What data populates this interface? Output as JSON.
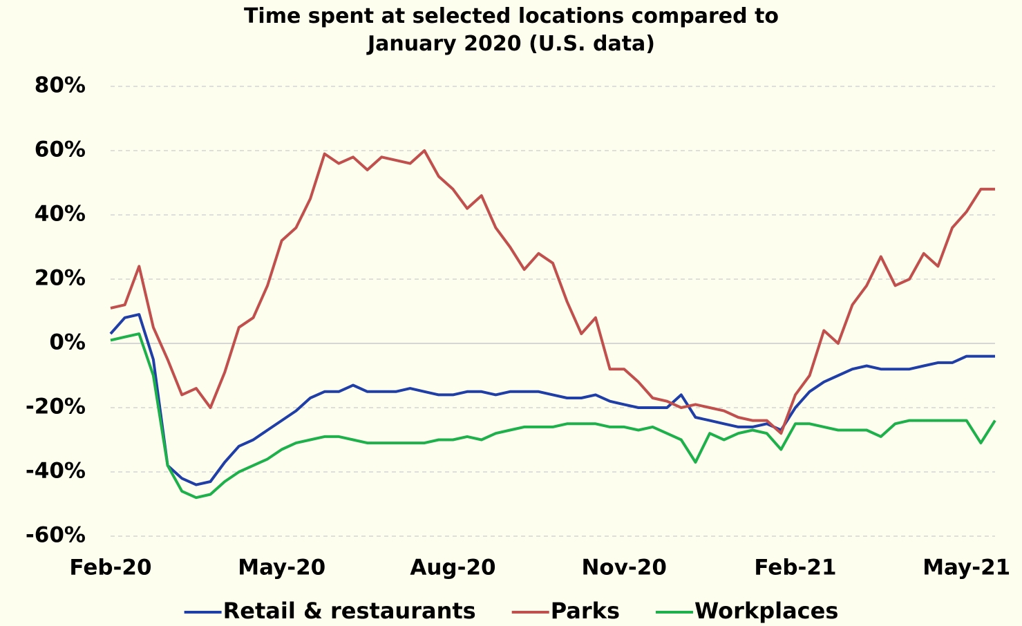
{
  "chart_data": {
    "type": "line",
    "title": "Time spent at selected locations compared to January 2020 (U.S. data)",
    "categories": [
      "Feb-20",
      null,
      null,
      null,
      null,
      null,
      null,
      null,
      null,
      null,
      null,
      null,
      "May-20",
      null,
      null,
      null,
      null,
      null,
      null,
      null,
      null,
      null,
      null,
      null,
      "Aug-20",
      null,
      null,
      null,
      null,
      null,
      null,
      null,
      null,
      null,
      null,
      null,
      "Nov-20",
      null,
      null,
      null,
      null,
      null,
      null,
      null,
      null,
      null,
      null,
      null,
      "Feb-21",
      null,
      null,
      null,
      null,
      null,
      null,
      null,
      null,
      null,
      null,
      null,
      "May-21",
      null,
      null
    ],
    "series": [
      {
        "name": "Retail & restaurants",
        "color": "#1f3ea6",
        "values": [
          3,
          8,
          9,
          -5,
          -38,
          -42,
          -44,
          -43,
          -37,
          -32,
          -30,
          -27,
          -24,
          -21,
          -17,
          -15,
          -15,
          -13,
          -15,
          -15,
          -15,
          -14,
          -15,
          -16,
          -16,
          -15,
          -15,
          -16,
          -15,
          -15,
          -15,
          -16,
          -17,
          -17,
          -16,
          -18,
          -19,
          -20,
          -20,
          -20,
          -16,
          -23,
          -24,
          -25,
          -26,
          -26,
          -25,
          -27,
          -20,
          -15,
          -12,
          -10,
          -8,
          -7,
          -8,
          -8,
          -8,
          -7,
          -6,
          -6,
          -4,
          -4,
          -4
        ]
      },
      {
        "name": "Parks",
        "color": "#c0504d",
        "values": [
          11,
          12,
          24,
          5,
          -5,
          -16,
          -14,
          -20,
          -9,
          5,
          8,
          18,
          32,
          36,
          45,
          59,
          56,
          58,
          54,
          58,
          57,
          56,
          60,
          52,
          48,
          42,
          46,
          36,
          30,
          23,
          28,
          25,
          13,
          3,
          8,
          -8,
          -8,
          -12,
          -17,
          -18,
          -20,
          -19,
          -20,
          -21,
          -23,
          -24,
          -24,
          -28,
          -16,
          -10,
          4,
          0,
          12,
          18,
          27,
          18,
          20,
          28,
          24,
          36,
          41,
          48,
          48
        ]
      },
      {
        "name": "Workplaces",
        "color": "#1db04b",
        "values": [
          1,
          2,
          3,
          -10,
          -38,
          -46,
          -48,
          -47,
          -43,
          -40,
          -38,
          -36,
          -33,
          -31,
          -30,
          -29,
          -29,
          -30,
          -31,
          -31,
          -31,
          -31,
          -31,
          -30,
          -30,
          -29,
          -30,
          -28,
          -27,
          -26,
          -26,
          -26,
          -25,
          -25,
          -25,
          -26,
          -26,
          -27,
          -26,
          -28,
          -30,
          -37,
          -28,
          -30,
          -28,
          -27,
          -28,
          -33,
          -25,
          -25,
          -26,
          -27,
          -27,
          -27,
          -29,
          -25,
          -24,
          -24,
          -24,
          -24,
          -24,
          -31,
          -24
        ]
      }
    ],
    "ylim": [
      -60,
      80
    ],
    "yticks": [
      {
        "value": -60,
        "label": "-60%"
      },
      {
        "value": -40,
        "label": "-40%"
      },
      {
        "value": -20,
        "label": "-20%"
      },
      {
        "value": 0,
        "label": "0%"
      },
      {
        "value": 20,
        "label": "20%"
      },
      {
        "value": 40,
        "label": "40%"
      },
      {
        "value": 60,
        "label": "60%"
      },
      {
        "value": 80,
        "label": "80%"
      }
    ],
    "grid": true,
    "legend": "bottom"
  }
}
